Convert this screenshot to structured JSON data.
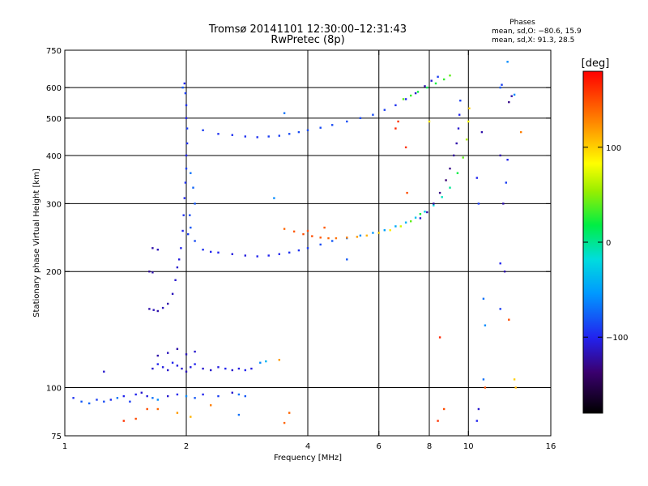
{
  "chart_data": {
    "type": "scatter",
    "title_line1": "Tromsø 20141101 12:30:00–12:31:43",
    "title_line2": "RwPretec (8p)",
    "phases_block": {
      "heading": "Phases",
      "line_o": "mean, sd,O: −80.6, 15.9",
      "line_x": "mean, sd,X:  91.3, 28.5"
    },
    "xlabel": "Frequency [MHz]",
    "ylabel": "Stationary phase Virtual Height [km]",
    "x_scale": "log",
    "y_scale": "log",
    "xlim": [
      1,
      16
    ],
    "ylim": [
      75,
      750
    ],
    "x_ticks": [
      1,
      2,
      4,
      6,
      8,
      10,
      16
    ],
    "x_tick_labels": [
      "1",
      "2",
      "4",
      "6",
      "8",
      "10",
      "16"
    ],
    "y_ticks": [
      75,
      100,
      200,
      300,
      400,
      500,
      600,
      750
    ],
    "y_tick_labels": [
      "75",
      "100",
      "200",
      "300",
      "400",
      "500",
      "600",
      "750"
    ],
    "gridlines_x": [
      2,
      4,
      6,
      8,
      10
    ],
    "gridlines_y": [
      100,
      200,
      300,
      400,
      500,
      600
    ],
    "colorbar": {
      "label": "[deg]",
      "range": [
        -180,
        180
      ],
      "ticks": [
        100,
        0,
        -100
      ],
      "tick_labels": [
        "100",
        "0",
        "−100"
      ]
    },
    "series": [
      {
        "points": [
          [
            1.05,
            94,
            -95
          ],
          [
            1.1,
            92,
            -80
          ],
          [
            1.15,
            91,
            -75
          ],
          [
            1.2,
            93,
            -90
          ],
          [
            1.25,
            92,
            -85
          ],
          [
            1.3,
            93,
            -95
          ],
          [
            1.35,
            94,
            -70
          ],
          [
            1.4,
            95,
            -100
          ],
          [
            1.45,
            92,
            -90
          ],
          [
            1.5,
            96,
            -100
          ],
          [
            1.55,
            97,
            -110
          ],
          [
            1.6,
            95,
            -105
          ],
          [
            1.65,
            94,
            -70
          ],
          [
            1.7,
            93,
            -60
          ],
          [
            1.8,
            95,
            -110
          ],
          [
            1.9,
            96,
            -100
          ],
          [
            2.0,
            95,
            -60
          ],
          [
            2.1,
            94,
            -80
          ],
          [
            2.2,
            96,
            -100
          ],
          [
            2.4,
            95,
            -90
          ],
          [
            2.6,
            97,
            -110
          ],
          [
            2.7,
            96,
            -70
          ],
          [
            2.8,
            95,
            -80
          ]
        ]
      },
      {
        "points": [
          [
            1.4,
            82,
            160
          ],
          [
            1.5,
            83,
            150
          ],
          [
            1.6,
            88,
            150
          ],
          [
            1.7,
            88,
            140
          ],
          [
            1.9,
            86,
            120
          ],
          [
            2.05,
            84,
            110
          ],
          [
            2.3,
            90,
            130
          ],
          [
            2.7,
            85,
            -70
          ],
          [
            3.5,
            81,
            140
          ],
          [
            3.6,
            86,
            140
          ]
        ]
      },
      {
        "points": [
          [
            1.25,
            110,
            -110
          ],
          [
            1.65,
            112,
            -110
          ],
          [
            1.7,
            115,
            -100
          ],
          [
            1.75,
            113,
            -105
          ],
          [
            1.8,
            111,
            -110
          ],
          [
            1.85,
            116,
            -100
          ],
          [
            1.9,
            114,
            -105
          ],
          [
            1.95,
            112,
            -110
          ],
          [
            2.0,
            110,
            -115
          ],
          [
            2.05,
            113,
            -105
          ],
          [
            2.1,
            115,
            -100
          ],
          [
            2.2,
            112,
            -110
          ],
          [
            2.3,
            111,
            -110
          ],
          [
            2.4,
            113,
            -105
          ],
          [
            2.5,
            112,
            -100
          ],
          [
            2.6,
            111,
            -110
          ],
          [
            2.7,
            112,
            -105
          ],
          [
            2.8,
            111,
            -100
          ],
          [
            2.9,
            112,
            -105
          ],
          [
            3.05,
            116,
            -60
          ],
          [
            3.15,
            117,
            -40
          ],
          [
            3.4,
            118,
            120
          ],
          [
            1.7,
            121,
            -120
          ],
          [
            1.8,
            123,
            -115
          ],
          [
            1.9,
            126,
            -120
          ],
          [
            2.0,
            122,
            -115
          ],
          [
            2.1,
            124,
            -110
          ]
        ]
      },
      {
        "points": [
          [
            1.65,
            230,
            -120
          ],
          [
            1.7,
            228,
            -115
          ],
          [
            1.62,
            200,
            -125
          ],
          [
            1.65,
            199,
            -120
          ],
          [
            1.62,
            160,
            -120
          ],
          [
            1.66,
            159,
            -115
          ],
          [
            1.7,
            158,
            -120
          ],
          [
            1.75,
            161,
            -115
          ],
          [
            1.8,
            165,
            -120
          ],
          [
            1.85,
            175,
            -115
          ],
          [
            1.88,
            190,
            -110
          ],
          [
            1.9,
            205,
            -110
          ],
          [
            1.92,
            215,
            -105
          ],
          [
            1.94,
            230,
            -100
          ],
          [
            1.96,
            255,
            -100
          ],
          [
            1.97,
            280,
            -95
          ],
          [
            1.98,
            310,
            -100
          ],
          [
            1.99,
            340,
            -95
          ],
          [
            2.0,
            370,
            -90
          ],
          [
            2.0,
            400,
            -100
          ],
          [
            2.01,
            430,
            -95
          ],
          [
            2.01,
            470,
            -90
          ],
          [
            2.0,
            500,
            -100
          ],
          [
            2.0,
            540,
            -95
          ],
          [
            1.99,
            580,
            -90
          ],
          [
            1.98,
            615,
            -100
          ],
          [
            1.96,
            600,
            -80
          ],
          [
            2.05,
            360,
            -70
          ],
          [
            2.08,
            330,
            -75
          ],
          [
            2.1,
            300,
            -80
          ],
          [
            2.04,
            280,
            -85
          ],
          [
            2.02,
            250,
            -90
          ]
        ]
      },
      {
        "points": [
          [
            2.05,
            260,
            -80
          ],
          [
            2.1,
            240,
            -85
          ],
          [
            2.2,
            228,
            -95
          ],
          [
            2.3,
            225,
            -100
          ],
          [
            2.4,
            224,
            -100
          ],
          [
            2.6,
            222,
            -105
          ],
          [
            2.8,
            220,
            -105
          ],
          [
            3.0,
            219,
            -100
          ],
          [
            3.2,
            220,
            -100
          ],
          [
            3.4,
            222,
            -100
          ],
          [
            3.6,
            224,
            -95
          ],
          [
            3.8,
            227,
            -95
          ],
          [
            4.0,
            230,
            -90
          ],
          [
            4.3,
            235,
            -85
          ],
          [
            4.6,
            240,
            -80
          ],
          [
            5.0,
            244,
            -70
          ],
          [
            5.4,
            248,
            -60
          ],
          [
            5.8,
            252,
            -55
          ],
          [
            6.2,
            256,
            -50
          ],
          [
            6.6,
            262,
            -45
          ],
          [
            7.0,
            268,
            -40
          ],
          [
            7.4,
            276,
            -35
          ],
          [
            7.8,
            286,
            -30
          ],
          [
            8.2,
            297,
            -20
          ],
          [
            8.6,
            312,
            -10
          ],
          [
            9.0,
            330,
            0
          ],
          [
            9.4,
            360,
            20
          ],
          [
            9.7,
            395,
            40
          ],
          [
            9.9,
            440,
            60
          ],
          [
            10.0,
            490,
            80
          ],
          [
            10.05,
            530,
            100
          ]
        ]
      },
      {
        "points": [
          [
            3.5,
            258,
            140
          ],
          [
            3.7,
            254,
            145
          ],
          [
            3.9,
            250,
            150
          ],
          [
            4.1,
            247,
            150
          ],
          [
            4.3,
            245,
            145
          ],
          [
            4.5,
            244,
            140
          ],
          [
            4.7,
            244,
            135
          ],
          [
            5.0,
            245,
            130
          ],
          [
            5.3,
            246,
            120
          ],
          [
            5.6,
            248,
            110
          ],
          [
            6.0,
            252,
            100
          ],
          [
            6.4,
            256,
            90
          ],
          [
            6.8,
            262,
            70
          ],
          [
            7.2,
            270,
            40
          ],
          [
            7.6,
            282,
            20
          ]
        ]
      },
      {
        "points": [
          [
            7.6,
            275,
            -110
          ],
          [
            7.9,
            285,
            -120
          ],
          [
            8.2,
            300,
            -125
          ],
          [
            8.5,
            320,
            -130
          ],
          [
            8.8,
            345,
            -135
          ],
          [
            9.0,
            370,
            -130
          ],
          [
            9.2,
            400,
            -125
          ],
          [
            9.35,
            430,
            -120
          ],
          [
            9.45,
            470,
            -110
          ],
          [
            9.5,
            510,
            -100
          ],
          [
            9.55,
            555,
            -90
          ]
        ]
      },
      {
        "points": [
          [
            2.2,
            465,
            -90
          ],
          [
            2.4,
            455,
            -95
          ],
          [
            2.6,
            452,
            -95
          ],
          [
            2.8,
            448,
            -95
          ],
          [
            3.0,
            446,
            -95
          ],
          [
            3.2,
            448,
            -90
          ],
          [
            3.4,
            450,
            -90
          ],
          [
            3.6,
            455,
            -85
          ],
          [
            3.8,
            460,
            -85
          ],
          [
            4.0,
            465,
            -85
          ],
          [
            4.3,
            472,
            -85
          ],
          [
            4.6,
            480,
            -85
          ],
          [
            5.0,
            490,
            -85
          ],
          [
            5.4,
            500,
            -85
          ],
          [
            5.8,
            510,
            -85
          ],
          [
            6.2,
            525,
            -90
          ],
          [
            6.6,
            540,
            -95
          ],
          [
            7.0,
            560,
            -100
          ],
          [
            7.4,
            580,
            -110
          ],
          [
            7.8,
            605,
            -120
          ],
          [
            8.1,
            625,
            -110
          ],
          [
            8.4,
            640,
            -90
          ]
        ]
      },
      {
        "points": [
          [
            6.9,
            560,
            40
          ],
          [
            7.2,
            572,
            30
          ],
          [
            7.5,
            585,
            20
          ],
          [
            7.9,
            600,
            15
          ],
          [
            8.3,
            615,
            20
          ],
          [
            8.7,
            630,
            30
          ],
          [
            9.0,
            645,
            40
          ]
        ]
      },
      {
        "points": [
          [
            3.5,
            515,
            -70
          ],
          [
            3.3,
            310,
            -60
          ],
          [
            4.0,
            255,
            150
          ],
          [
            4.4,
            260,
            145
          ],
          [
            5.0,
            215,
            -80
          ],
          [
            6.7,
            490,
            160
          ],
          [
            6.6,
            470,
            165
          ],
          [
            7.0,
            420,
            160
          ],
          [
            7.05,
            320,
            150
          ],
          [
            8.0,
            490,
            90
          ],
          [
            8.7,
            88,
            150
          ],
          [
            8.5,
            135,
            165
          ],
          [
            8.4,
            82,
            160
          ],
          [
            10.5,
            350,
            -100
          ],
          [
            10.6,
            300,
            -90
          ],
          [
            10.8,
            460,
            -120
          ],
          [
            10.9,
            170,
            -70
          ],
          [
            11.0,
            145,
            -60
          ],
          [
            10.9,
            105,
            -70
          ],
          [
            11.0,
            100,
            150
          ],
          [
            10.6,
            88,
            -110
          ],
          [
            10.5,
            82,
            -100
          ],
          [
            12.0,
            600,
            -80
          ],
          [
            12.1,
            610,
            -90
          ],
          [
            12.0,
            400,
            -120
          ],
          [
            12.5,
            390,
            -100
          ],
          [
            12.4,
            340,
            -90
          ],
          [
            12.2,
            300,
            -120
          ],
          [
            12.0,
            210,
            -100
          ],
          [
            12.3,
            200,
            -120
          ],
          [
            12.0,
            160,
            -90
          ],
          [
            12.6,
            150,
            150
          ],
          [
            13.0,
            575,
            -60
          ],
          [
            13.0,
            105,
            100
          ],
          [
            13.1,
            100,
            110
          ],
          [
            13.5,
            460,
            130
          ],
          [
            12.8,
            570,
            -120
          ],
          [
            12.6,
            550,
            -130
          ],
          [
            12.5,
            700,
            -60
          ]
        ]
      }
    ]
  }
}
